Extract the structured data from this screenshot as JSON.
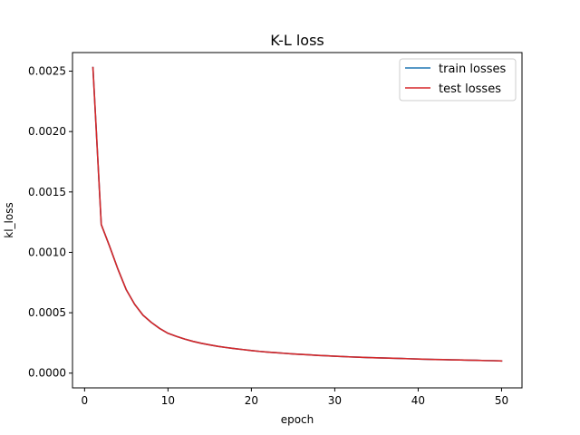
{
  "chart_data": {
    "type": "line",
    "title": "K-L loss",
    "xlabel": "epoch",
    "ylabel": "kl_loss",
    "xlim": [
      -1.45,
      52.45
    ],
    "ylim": [
      -0.000122,
      0.002654
    ],
    "x_ticks": [
      0,
      10,
      20,
      30,
      40,
      50
    ],
    "x_tick_labels": [
      "0",
      "10",
      "20",
      "30",
      "40",
      "50"
    ],
    "y_ticks": [
      0.0,
      0.0005,
      0.001,
      0.0015,
      0.002,
      0.0025
    ],
    "y_tick_labels": [
      "0.0000",
      "0.0005",
      "0.0010",
      "0.0015",
      "0.0020",
      "0.0025"
    ],
    "grid": false,
    "legend_position": "top-right",
    "x": [
      1,
      2,
      3,
      4,
      5,
      6,
      7,
      8,
      9,
      10,
      11,
      12,
      13,
      14,
      15,
      16,
      17,
      18,
      19,
      20,
      21,
      22,
      23,
      24,
      25,
      26,
      27,
      28,
      29,
      30,
      31,
      32,
      33,
      34,
      35,
      36,
      37,
      38,
      39,
      40,
      41,
      42,
      43,
      44,
      45,
      46,
      47,
      48,
      49,
      50
    ],
    "series": [
      {
        "name": "train losses",
        "color": "#1f77b4",
        "values": [
          0.00253,
          0.00123,
          0.00105,
          0.00086,
          0.00069,
          0.00057,
          0.00048,
          0.00042,
          0.00037,
          0.00033,
          0.000305,
          0.000282,
          0.000263,
          0.000247,
          0.000234,
          0.000222,
          0.000212,
          0.000203,
          0.000195,
          0.000187,
          0.00018,
          0.000174,
          0.000169,
          0.000164,
          0.000159,
          0.000155,
          0.000151,
          0.000147,
          0.000144,
          0.00014,
          0.000137,
          0.000134,
          0.000132,
          0.000129,
          0.000127,
          0.000125,
          0.000123,
          0.000121,
          0.000119,
          0.000117,
          0.000115,
          0.000113,
          0.000112,
          0.00011,
          0.000109,
          0.000107,
          0.000106,
          0.000104,
          0.000103,
          0.000101
        ]
      },
      {
        "name": "test losses",
        "color": "#d62728",
        "values": [
          0.00253,
          0.00123,
          0.00105,
          0.00086,
          0.00069,
          0.00057,
          0.00048,
          0.00042,
          0.00037,
          0.00033,
          0.000305,
          0.000282,
          0.000263,
          0.000247,
          0.000234,
          0.000222,
          0.000212,
          0.000203,
          0.000195,
          0.000187,
          0.00018,
          0.000174,
          0.000169,
          0.000164,
          0.000159,
          0.000155,
          0.000151,
          0.000147,
          0.000144,
          0.00014,
          0.000137,
          0.000134,
          0.000132,
          0.000129,
          0.000127,
          0.000125,
          0.000123,
          0.000121,
          0.000119,
          0.000117,
          0.000115,
          0.000113,
          0.000112,
          0.00011,
          0.000109,
          0.000107,
          0.000106,
          0.000104,
          0.000103,
          0.000101
        ]
      }
    ]
  }
}
